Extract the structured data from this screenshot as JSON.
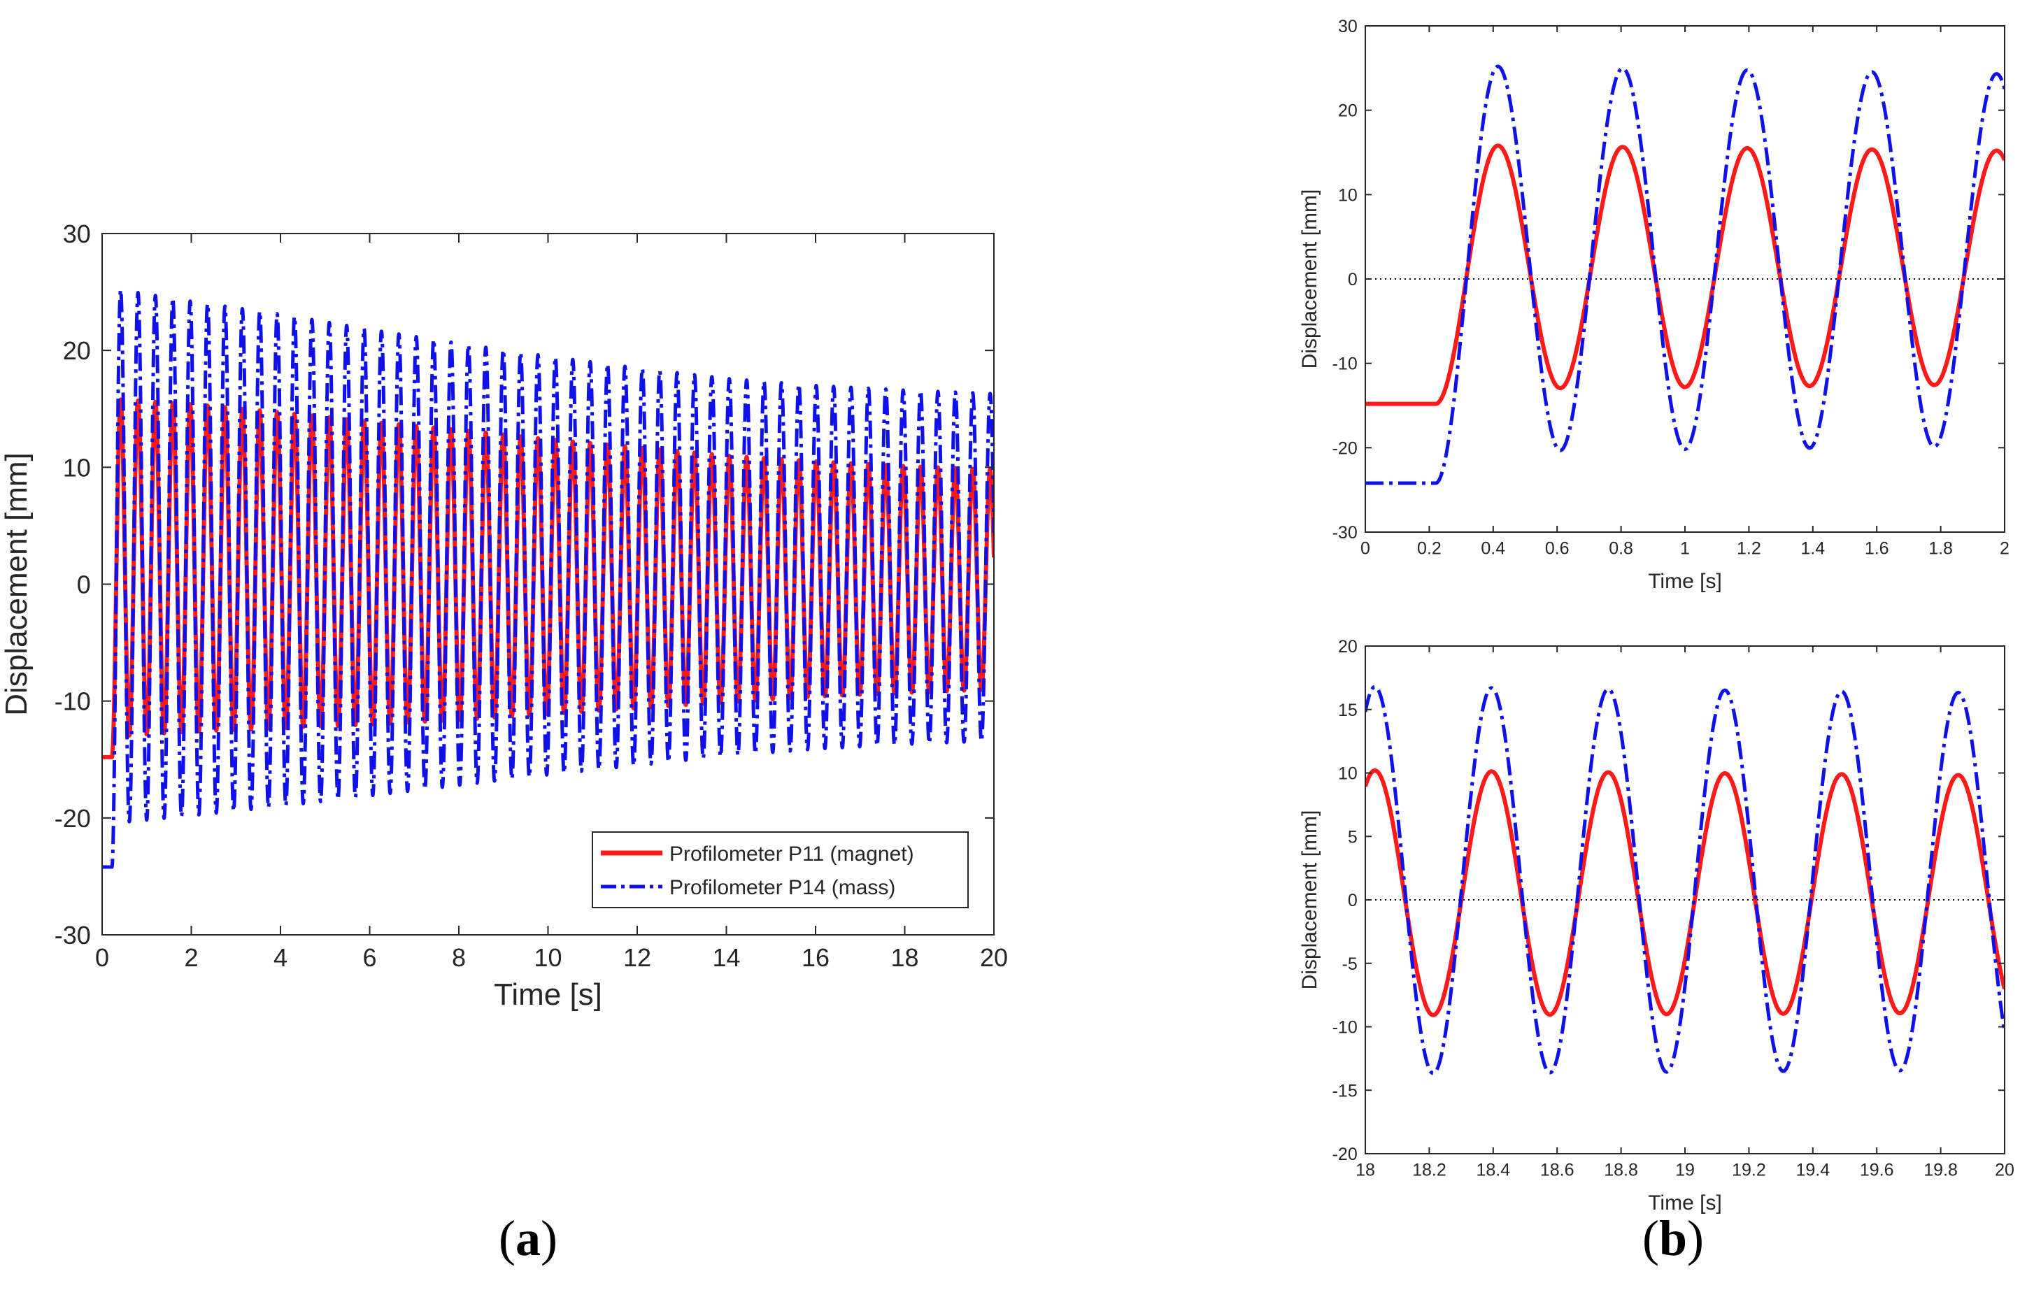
{
  "colors": {
    "p11": "#ff1a1a",
    "p14": "#1010e8",
    "axis": "#262626",
    "zero_line": "#000000"
  },
  "panel_labels": {
    "a": {
      "open": "(",
      "letter": "a",
      "close": ")"
    },
    "b": {
      "open": "(",
      "letter": "b",
      "close": ")"
    }
  },
  "chart_data": [
    {
      "id": "a",
      "type": "line",
      "xlabel": "Time [s]",
      "ylabel": "Displacement [mm]",
      "xlim": [
        0,
        20
      ],
      "ylim": [
        -30,
        30
      ],
      "xticks": [
        0,
        2,
        4,
        6,
        8,
        10,
        12,
        14,
        16,
        18,
        20
      ],
      "yticks": [
        -30,
        -20,
        -10,
        0,
        10,
        20,
        30
      ],
      "zero_line": false,
      "legend": {
        "position": "bottom-right",
        "entries": [
          "Profilometer P11 (magnet)",
          "Profilometer P14 (mass)"
        ]
      },
      "series": [
        {
          "name": "Profilometer P11 (magnet)",
          "style": "solid",
          "color": "#ff1a1a",
          "initial": -14.8,
          "start_s": 0.22,
          "period_s": 0.39,
          "x": [
            0.4,
            2,
            4,
            6,
            8,
            10,
            12,
            14,
            16,
            18,
            20
          ],
          "upper": [
            15.8,
            15.4,
            14.7,
            13.9,
            13.2,
            12.4,
            11.7,
            11.0,
            10.5,
            10.1,
            9.8
          ],
          "lower": [
            -13.0,
            -12.6,
            -12.3,
            -12.0,
            -11.6,
            -11.1,
            -10.6,
            -10.1,
            -9.6,
            -9.3,
            -9.0
          ]
        },
        {
          "name": "Profilometer P14 (mass)",
          "style": "dashdot",
          "color": "#1010e8",
          "initial": -24.2,
          "start_s": 0.22,
          "period_s": 0.39,
          "x": [
            0.4,
            2,
            4,
            6,
            8,
            10,
            12,
            14,
            16,
            18,
            20
          ],
          "upper": [
            25.2,
            24.2,
            23.1,
            21.8,
            20.6,
            19.5,
            18.5,
            17.6,
            17.0,
            16.6,
            16.3
          ],
          "lower": [
            -20.4,
            -19.8,
            -19.0,
            -18.1,
            -17.2,
            -16.3,
            -15.5,
            -14.7,
            -14.1,
            -13.7,
            -13.4
          ]
        }
      ]
    },
    {
      "id": "b-top",
      "type": "line",
      "xlabel": "Time [s]",
      "ylabel": "Displacement [mm]",
      "xlim": [
        0,
        2
      ],
      "ylim": [
        -30,
        30
      ],
      "xticks": [
        0,
        0.2,
        0.4,
        0.6,
        0.8,
        1,
        1.2,
        1.4,
        1.6,
        1.8,
        2
      ],
      "yticks": [
        -30,
        -20,
        -10,
        0,
        10,
        20,
        30
      ],
      "zero_line": true,
      "series": [
        {
          "name": "Profilometer P11 (magnet)",
          "style": "solid",
          "color": "#ff1a1a",
          "initial": -14.8,
          "start_s": 0.22,
          "period_s": 0.39,
          "x": [
            0.4,
            2
          ],
          "upper": [
            15.8,
            15.2
          ],
          "lower": [
            -13.0,
            -12.5
          ]
        },
        {
          "name": "Profilometer P14 (mass)",
          "style": "dashdot",
          "color": "#1010e8",
          "initial": -24.2,
          "start_s": 0.22,
          "period_s": 0.39,
          "x": [
            0.4,
            2
          ],
          "upper": [
            25.2,
            24.3
          ],
          "lower": [
            -20.4,
            -19.8
          ]
        }
      ]
    },
    {
      "id": "b-bottom",
      "type": "line",
      "xlabel": "Time [s]",
      "ylabel": "Displacement [mm]",
      "xlim": [
        18,
        20
      ],
      "ylim": [
        -20,
        20
      ],
      "xticks": [
        18,
        18.2,
        18.4,
        18.6,
        18.8,
        19,
        19.2,
        19.4,
        19.6,
        19.8,
        20
      ],
      "yticks": [
        -20,
        -15,
        -10,
        -5,
        0,
        5,
        10,
        15,
        20
      ],
      "zero_line": true,
      "series": [
        {
          "name": "Profilometer P11 (magnet)",
          "style": "solid",
          "color": "#ff1a1a",
          "peak_time": 18.03,
          "period_s": 0.365,
          "x": [
            18,
            20
          ],
          "upper": [
            10.2,
            9.8
          ],
          "lower": [
            -9.1,
            -8.9
          ]
        },
        {
          "name": "Profilometer P14 (mass)",
          "style": "dashdot",
          "color": "#1010e8",
          "peak_time": 18.03,
          "period_s": 0.365,
          "x": [
            18,
            20
          ],
          "upper": [
            16.8,
            16.3
          ],
          "lower": [
            -13.7,
            -13.4
          ]
        }
      ]
    }
  ]
}
